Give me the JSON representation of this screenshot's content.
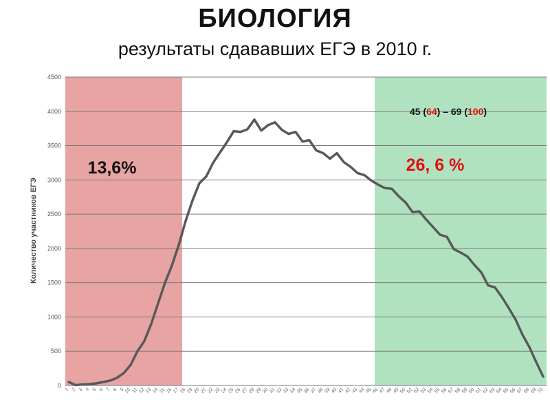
{
  "title": "БИОЛОГИЯ",
  "subtitle": "результаты сдававших ЕГЭ в 2010 г.",
  "colors": {
    "red_zone": "#e8a3a3",
    "green_zone": "#b0e2c0",
    "line": "#595959",
    "grid": "#7a7a7a",
    "annotation_red": "#e01010"
  },
  "annotations": {
    "left_percent": "13,6%",
    "right_percent": "26, 6 %",
    "score_range": {
      "p1": "45 (",
      "v1": "64",
      "p2": ") – 69 (",
      "v2": "100",
      "p3": ")"
    }
  },
  "chart_data": {
    "type": "line",
    "ylabel": "Количество участников ЕГЭ",
    "xlabel": "",
    "ylim": [
      0,
      4500
    ],
    "yticks": [
      0,
      500,
      1000,
      1500,
      2000,
      2500,
      3000,
      3500,
      4000,
      4500
    ],
    "grid": true,
    "x": [
      1,
      2,
      3,
      4,
      5,
      6,
      7,
      8,
      9,
      10,
      11,
      12,
      13,
      14,
      15,
      16,
      17,
      18,
      19,
      20,
      21,
      22,
      23,
      24,
      25,
      26,
      27,
      28,
      29,
      30,
      31,
      32,
      33,
      34,
      35,
      36,
      37,
      38,
      39,
      40,
      41,
      42,
      43,
      44,
      45,
      46,
      47,
      48,
      49,
      50,
      51,
      52,
      53,
      54,
      55,
      56,
      57,
      58,
      59,
      60,
      61,
      62,
      63,
      64,
      65,
      66,
      67,
      68,
      69,
      70
    ],
    "series": [
      {
        "values": [
          50,
          5,
          15,
          20,
          30,
          50,
          70,
          110,
          180,
          300,
          500,
          650,
          900,
          1200,
          1500,
          1750,
          2050,
          2400,
          2700,
          2950,
          3050,
          3250,
          3400,
          3550,
          3710,
          3700,
          3740,
          3880,
          3720,
          3800,
          3840,
          3730,
          3670,
          3700,
          3560,
          3580,
          3430,
          3390,
          3310,
          3390,
          3260,
          3190,
          3100,
          3070,
          2990,
          2930,
          2880,
          2870,
          2760,
          2670,
          2530,
          2540,
          2420,
          2310,
          2200,
          2170,
          1990,
          1940,
          1880,
          1760,
          1650,
          1460,
          1430,
          1290,
          1130,
          960,
          740,
          560,
          340,
          130
        ]
      }
    ],
    "zones": [
      {
        "from": 0.5,
        "to": 17.5,
        "color": "#e8a3a3"
      },
      {
        "from": 45.5,
        "to": 70.5,
        "color": "#b0e2c0"
      }
    ]
  }
}
